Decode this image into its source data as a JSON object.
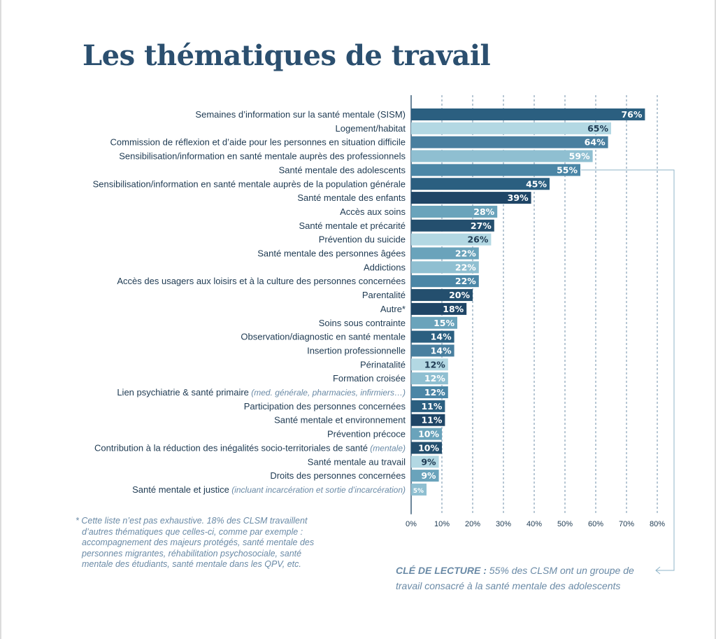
{
  "title": "Les thématiques de travail",
  "chart_data": {
    "type": "bar",
    "orientation": "horizontal",
    "categories": [
      "Semaines d’information sur la santé mentale (SISM)",
      "Logement/habitat",
      "Commission de réflexion et d’aide pour les personnes en situation difficile",
      "Sensibilisation/information en santé mentale auprès des professionnels",
      "Santé mentale des adolescents",
      "Sensibilisation/information en santé mentale auprès de la population générale",
      "Santé mentale des enfants",
      "Accès aux soins",
      "Santé mentale et précarité",
      "Prévention du suicide",
      "Santé mentale des personnes âgées",
      "Addictions",
      "Accès des usagers aux loisirs et à la culture des personnes concernées",
      "Parentalité",
      "Autre*",
      "Soins sous contrainte",
      "Observation/diagnostic en santé mentale",
      "Insertion professionnelle",
      "Périnatalité",
      "Formation croisée",
      "Lien psychiatrie & santé primaire",
      "Participation des personnes concernées",
      "Santé mentale et environnement",
      "Prévention précoce",
      "Contribution à la réduction des inégalités socio-territoriales de santé",
      "Santé mentale au travail",
      "Droits des personnes concernées",
      "Santé mentale et justice"
    ],
    "category_notes": [
      "",
      "",
      "",
      "",
      "",
      "",
      "",
      "",
      "",
      "",
      "",
      "",
      "",
      "",
      "",
      "",
      "",
      "",
      "",
      "",
      "(med. générale, pharmacies, infirmiers…)",
      "",
      "",
      "",
      "(mentale)",
      "",
      "",
      "(incluant incarcération et sortie d’incarcération)"
    ],
    "values": [
      76,
      65,
      64,
      59,
      55,
      45,
      39,
      28,
      27,
      26,
      22,
      22,
      22,
      20,
      18,
      15,
      14,
      14,
      12,
      12,
      12,
      11,
      11,
      10,
      10,
      9,
      9,
      5
    ],
    "value_labels": [
      "76%",
      "65%",
      "64%",
      "59%",
      "55%",
      "45%",
      "39%",
      "28%",
      "27%",
      "26%",
      "22%",
      "22%",
      "22%",
      "20%",
      "18%",
      "15%",
      "14%",
      "14%",
      "12%",
      "12%",
      "12%",
      "11%",
      "11%",
      "10%",
      "10%",
      "9%",
      "9%",
      "5%"
    ],
    "bar_colors": [
      "#2b5f80",
      "#b3d8e3",
      "#497f9f",
      "#8fbfd1",
      "#4b86a6",
      "#2b5f80",
      "#1f4566",
      "#6aa3bb",
      "#244f6e",
      "#b3d8e3",
      "#6aa3bb",
      "#8fbfd1",
      "#4b86a6",
      "#244f6e",
      "#1f4566",
      "#6aa3bb",
      "#2b5f80",
      "#497f9f",
      "#b3d8e3",
      "#8fbfd1",
      "#4b86a6",
      "#2b5f80",
      "#1f4566",
      "#6aa3bb",
      "#244f6e",
      "#b3d8e3",
      "#6aa3bb",
      "#8fbfd1"
    ],
    "dark_label_colors": [
      "#b3d8e3"
    ],
    "x_ticks": [
      "0%",
      "10%",
      "20%",
      "30%",
      "40%",
      "50%",
      "60%",
      "70%",
      "80%"
    ],
    "xlim": [
      0,
      80
    ],
    "grid": "vertical dashed",
    "annotated_category": "Santé mentale des adolescents"
  },
  "footnote": [
    "* Cette liste n’est pas exhaustive. 18% des CLSM travaillent",
    "d’autres thématiques que celles-ci, comme par exemple :",
    "accompagnement des majeurs protégés, santé mentale des",
    "personnes migrantes, réhabilitation psychosociale, santé",
    "mentale des étudiants, santé mentale dans les QPV, etc."
  ],
  "reading_key": {
    "label": "CLÉ DE LECTURE :",
    "line1": "55% des CLSM ont un groupe de",
    "line2": "travail consacré à la santé mentale des adolescents"
  },
  "colors": {
    "title": "#2b4f6f",
    "category_text": "#1e3a52",
    "muted_text": "#6a8aa6",
    "grid": "#6f8fa8"
  }
}
